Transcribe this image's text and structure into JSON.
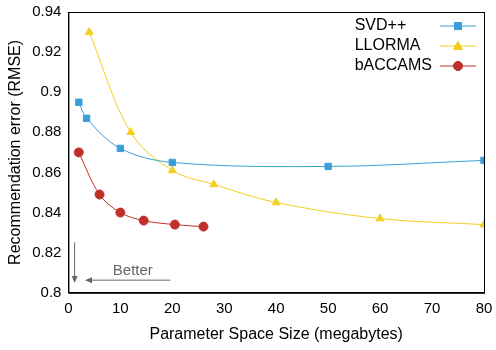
{
  "chart_data": {
    "type": "line",
    "x_label": "Parameter Space Size (megabytes)",
    "y_label": "Recommendation error (RMSE)",
    "xlim": [
      0,
      80
    ],
    "xticks": [
      0,
      10,
      20,
      30,
      40,
      50,
      60,
      70,
      80
    ],
    "ylim": [
      0.8,
      0.94
    ],
    "yticks": [
      0.8,
      0.82,
      0.84,
      0.86,
      0.88,
      0.9,
      0.92,
      0.94
    ],
    "grid": false,
    "legend": "upper right",
    "annotations": [
      {
        "text": "Better"
      }
    ],
    "series": [
      {
        "name": "SVD++",
        "color": "#3a9fd8",
        "marker": "square",
        "x": [
          2,
          3.5,
          10,
          20,
          50,
          80
        ],
        "values": [
          0.895,
          0.887,
          0.872,
          0.865,
          0.863,
          0.866
        ]
      },
      {
        "name": "LLORMA",
        "color": "#f2cf1f",
        "marker": "triangle",
        "x": [
          4,
          12,
          20,
          28,
          40,
          60,
          80
        ],
        "values": [
          0.93,
          0.88,
          0.861,
          0.854,
          0.845,
          0.837,
          0.834
        ]
      },
      {
        "name": "bACCAMS",
        "color": "#c0302a",
        "marker": "circle",
        "x": [
          2,
          6,
          10,
          14.5,
          20.5,
          26
        ],
        "values": [
          0.87,
          0.849,
          0.84,
          0.836,
          0.834,
          0.833
        ]
      }
    ]
  }
}
